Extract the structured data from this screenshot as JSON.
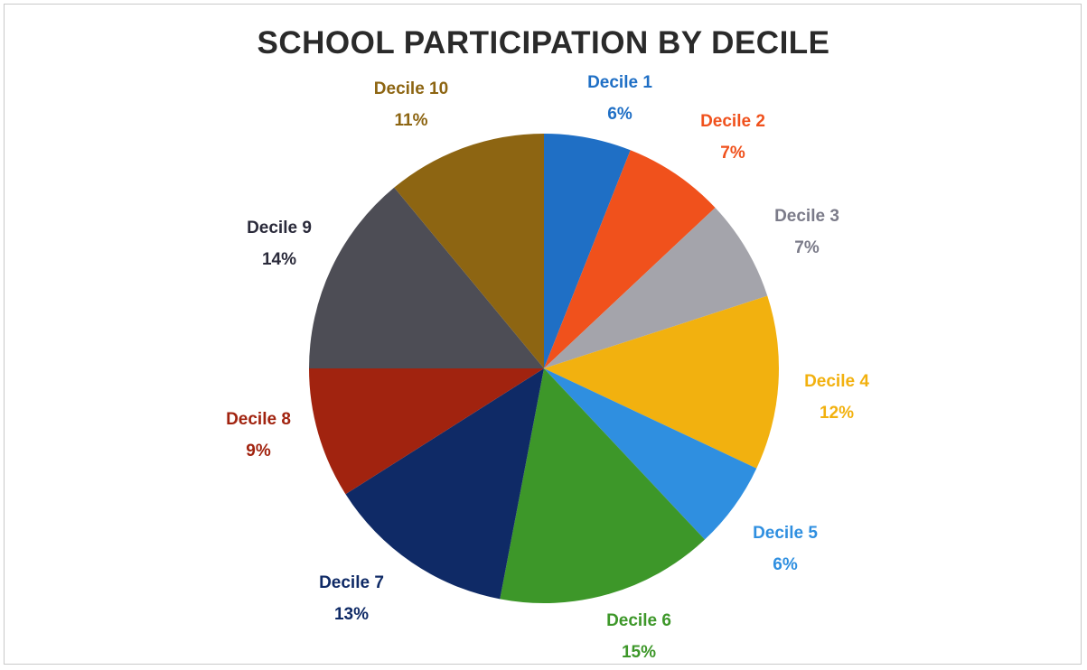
{
  "chart_data": {
    "type": "pie",
    "title": "SCHOOL PARTICIPATION BY DECILE",
    "slices": [
      {
        "label": "Decile 1",
        "value": 6,
        "value_label": "6%",
        "color": "#1f6fc5"
      },
      {
        "label": "Decile 2",
        "value": 7,
        "value_label": "7%",
        "color": "#f0511c"
      },
      {
        "label": "Decile 3",
        "value": 7,
        "value_label": "7%",
        "color": "#a4a4ab"
      },
      {
        "label": "Decile 4",
        "value": 12,
        "value_label": "12%",
        "color": "#f2b10f"
      },
      {
        "label": "Decile 5",
        "value": 6,
        "value_label": "6%",
        "color": "#2f8fe0"
      },
      {
        "label": "Decile 6",
        "value": 15,
        "value_label": "15%",
        "color": "#3d9729"
      },
      {
        "label": "Decile 7",
        "value": 13,
        "value_label": "13%",
        "color": "#0f2a66"
      },
      {
        "label": "Decile 8",
        "value": 9,
        "value_label": "9%",
        "color": "#a1230f"
      },
      {
        "label": "Decile 9",
        "value": 14,
        "value_label": "14%",
        "color": "#4d4d55"
      },
      {
        "label": "Decile 10",
        "value": 11,
        "value_label": "11%",
        "color": "#8d6512"
      }
    ],
    "label_colors": [
      "#1f6fc5",
      "#f0511c",
      "#7b7b89",
      "#f2b10f",
      "#2f8fe0",
      "#3d9729",
      "#0f2a66",
      "#a1230f",
      "#2a2a3a",
      "#8d6512"
    ],
    "legend": "none",
    "data_labels": "outside"
  }
}
